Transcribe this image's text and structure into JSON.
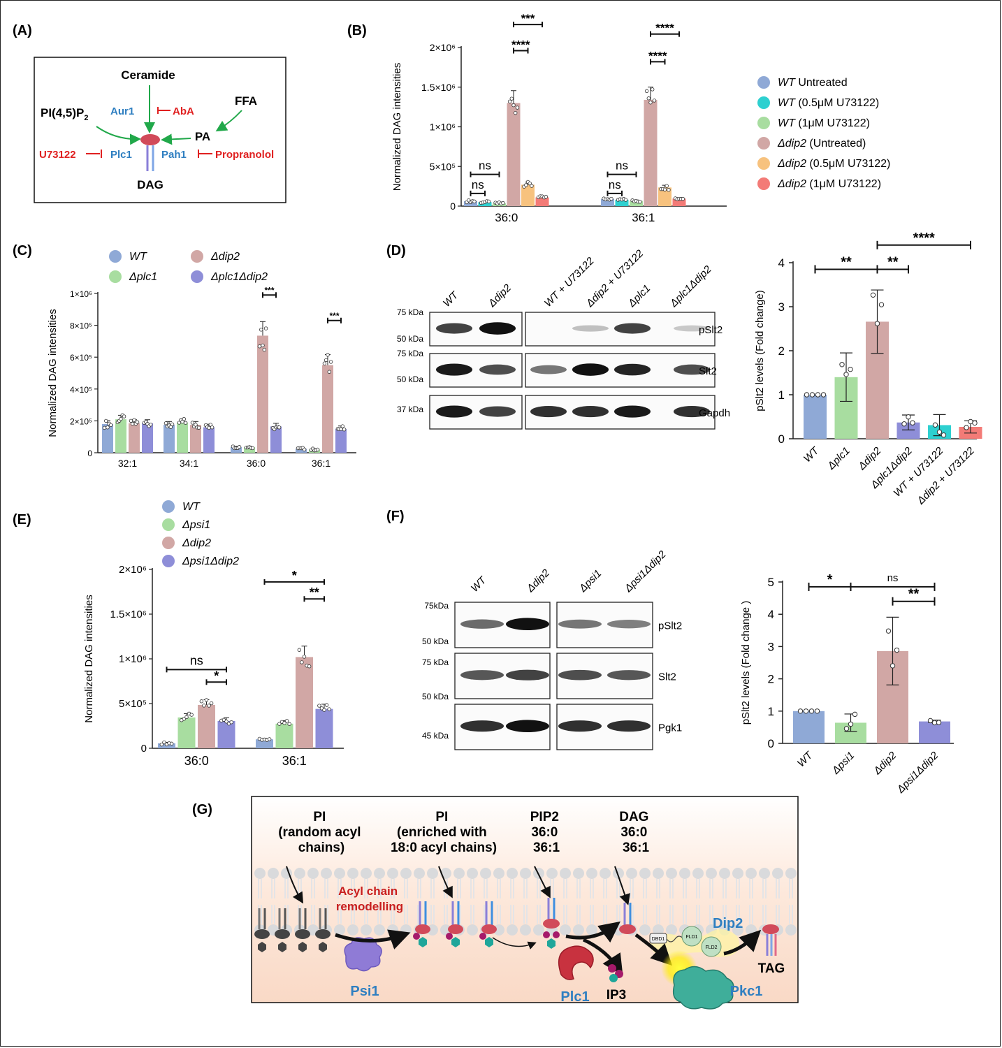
{
  "colors": {
    "wt": "#8fa9d6",
    "blue": "#8fa9d6",
    "cyan": "#2ed0d0",
    "green": "#a8dda0",
    "pink": "#d1a7a5",
    "orange": "#f7c27e",
    "red": "#f37b77",
    "purple": "#8e8ed8",
    "text_blue": "#2f7fc1",
    "text_red": "#e02020",
    "arrow_green": "#21a84a"
  },
  "panels": {
    "A": {
      "label": "(A)",
      "ceramide": "Ceramide",
      "pip2": "PI(4,5)P",
      "pip2_sub": "2",
      "ffa": "FFA",
      "pa": "PA",
      "dag": "DAG",
      "aur1": "Aur1",
      "plc1": "Plc1",
      "pah1": "Pah1",
      "aba": "AbA",
      "u73122": "U73122",
      "propranolol": "Propranolol"
    },
    "B": {
      "label": "(B)"
    },
    "C": {
      "label": "(C)"
    },
    "D": {
      "label": "(D)",
      "blot_lanes": [
        "WT",
        "Δdip2",
        "WT + U73122",
        "Δdip2 + U73122",
        "Δplc1",
        "Δplc1Δdip2"
      ],
      "rows": [
        "pSlt2",
        "Slt2",
        "Gapdh"
      ],
      "markers": [
        "75 kDa",
        "50 kDa",
        "75 kDa",
        "50 kDa",
        "37 kDa"
      ]
    },
    "E": {
      "label": "(E)"
    },
    "F": {
      "label": "(F)",
      "blot_lanes": [
        "WT",
        "Δdip2",
        "Δpsi1",
        "Δpsi1Δdip2"
      ],
      "rows": [
        "pSlt2",
        "Slt2",
        "Pgk1"
      ],
      "markers": [
        "75kDa",
        "50 kDa",
        "75 kDa",
        "50 kDa",
        "45 kDa"
      ]
    },
    "G": {
      "label": "(G)",
      "pi_random": [
        "PI",
        "(random acyl",
        "chains)"
      ],
      "pi_enriched": [
        "PI",
        "(enriched with",
        "18:0 acyl chains)"
      ],
      "pip2": [
        "PIP2",
        "36:0",
        "36:1"
      ],
      "dag": [
        "DAG",
        "36:0",
        "36:1"
      ],
      "remodel": [
        "Acyl chain",
        "remodelling"
      ],
      "psi1": "Psi1",
      "plc1": "Plc1",
      "ip3": "IP3",
      "pkc1": "Pkc1",
      "dip2": "Dip2",
      "tag": "TAG",
      "dbd1": "DBD1",
      "fld1": "FLD1",
      "fld2": "FLD2"
    }
  },
  "chart_data": [
    {
      "id": "B",
      "type": "bar",
      "ylabel": "Normalized DAG intensities",
      "ylim": [
        0,
        2000000
      ],
      "yticks": [
        {
          "v": 0,
          "label": "0"
        },
        {
          "v": 500000,
          "label": "5×10⁵"
        },
        {
          "v": 1000000,
          "label": "1×10⁶"
        },
        {
          "v": 1500000,
          "label": "1.5×10⁶"
        },
        {
          "v": 2000000,
          "label": "2×10⁶"
        }
      ],
      "categories": [
        "36:0",
        "36:1"
      ],
      "series": [
        {
          "name": "WT Untreated",
          "italic": "WT",
          "rest": " Untreated",
          "color": "#8fa9d6",
          "values": [
            62000,
            90000
          ]
        },
        {
          "name": "WT (0.5μM U73122)",
          "italic": "WT",
          "rest": " (0.5μM U73122)",
          "color": "#2ed0d0",
          "values": [
            50000,
            80000
          ]
        },
        {
          "name": "WT (1μM U73122)",
          "italic": "WT",
          "rest": " (1μM U73122)",
          "color": "#a8dda0",
          "values": [
            35000,
            65000
          ]
        },
        {
          "name": "Δdip2 (Untreated)",
          "italic": "Δdip2",
          "rest": " (Untreated)",
          "color": "#d1a7a5",
          "values": [
            1300000,
            1340000
          ]
        },
        {
          "name": "Δdip2 (0.5μM U73122)",
          "italic": "Δdip2",
          "rest": " (0.5μM U73122)",
          "color": "#f7c27e",
          "values": [
            270000,
            235000
          ]
        },
        {
          "name": "Δdip2 (1μM U73122)",
          "italic": "Δdip2",
          "rest": " (1μM U73122)",
          "color": "#f37b77",
          "values": [
            110000,
            95000
          ]
        }
      ],
      "significance": [
        {
          "label": "ns",
          "c": 0,
          "from": 0,
          "to": 1,
          "y": 160000
        },
        {
          "label": "ns",
          "c": 0,
          "from": 0,
          "to": 2,
          "y": 400000
        },
        {
          "label": "****",
          "c": 0,
          "from": 3,
          "to": 4,
          "y": 1960000
        },
        {
          "label": "***",
          "c": 0,
          "from": 3,
          "to": 5,
          "y": 2290000
        },
        {
          "label": "ns",
          "c": 1,
          "from": 0,
          "to": 1,
          "y": 160000
        },
        {
          "label": "ns",
          "c": 1,
          "from": 0,
          "to": 2,
          "y": 400000
        },
        {
          "label": "****",
          "c": 1,
          "from": 3,
          "to": 4,
          "y": 1820000
        },
        {
          "label": "****",
          "c": 1,
          "from": 3,
          "to": 5,
          "y": 2170000
        }
      ]
    },
    {
      "id": "C",
      "type": "bar",
      "ylabel": "Normalized DAG intensities",
      "ylim": [
        0,
        1000000
      ],
      "yticks": [
        {
          "v": 0,
          "label": "0"
        },
        {
          "v": 200000,
          "label": "2×10⁵"
        },
        {
          "v": 400000,
          "label": "4×10⁵"
        },
        {
          "v": 600000,
          "label": "6×10⁵"
        },
        {
          "v": 800000,
          "label": "8×10⁵"
        },
        {
          "v": 1000000,
          "label": "1×10⁶"
        }
      ],
      "categories": [
        "32:1",
        "34:1",
        "36:0",
        "36:1"
      ],
      "series": [
        {
          "name": "WT",
          "color": "#8fa9d6",
          "values": [
            180000,
            175000,
            35000,
            25000
          ]
        },
        {
          "name": "Δplc1",
          "color": "#a8dda0",
          "values": [
            210000,
            190000,
            35000,
            20000
          ]
        },
        {
          "name": "Δdip2",
          "color": "#d1a7a5",
          "values": [
            185000,
            175000,
            735000,
            550000
          ]
        },
        {
          "name": "Δplc1Δdip2",
          "color": "#8e8ed8",
          "values": [
            185000,
            160000,
            165000,
            150000
          ]
        }
      ],
      "significance": [
        {
          "label": "***",
          "c": 2,
          "from": 2,
          "to": 3,
          "y": 990000
        },
        {
          "label": "***",
          "c": 3,
          "from": 2,
          "to": 3,
          "y": 830000
        }
      ]
    },
    {
      "id": "D",
      "type": "bar",
      "ylabel": "pSlt2 levels (Fold change)",
      "ylim": [
        0,
        4
      ],
      "yticks": [
        {
          "v": 0,
          "label": "0"
        },
        {
          "v": 1,
          "label": "1"
        },
        {
          "v": 2,
          "label": "2"
        },
        {
          "v": 3,
          "label": "3"
        },
        {
          "v": 4,
          "label": "4"
        }
      ],
      "categories": [
        "WT",
        "Δplc1",
        "Δdip2",
        "Δplc1Δdip2",
        "WT + U73122",
        "Δdip2 + U73122"
      ],
      "colors": [
        "#8fa9d6",
        "#a8dda0",
        "#d1a7a5",
        "#8e8ed8",
        "#2ed0d0",
        "#f37b77"
      ],
      "values": [
        1.0,
        1.4,
        2.66,
        0.37,
        0.31,
        0.27
      ],
      "errors": [
        0.0,
        0.55,
        0.72,
        0.17,
        0.24,
        0.14
      ],
      "significance": [
        {
          "label": "**",
          "from": 0,
          "to": 2,
          "y": 3.85
        },
        {
          "label": "**",
          "from": 2,
          "to": 3,
          "y": 3.85
        },
        {
          "label": "****",
          "from": 2,
          "to": 5,
          "y": 4.4
        }
      ]
    },
    {
      "id": "E",
      "type": "bar",
      "ylabel": "Normalized DAG intensities",
      "ylim": [
        0,
        2000000
      ],
      "yticks": [
        {
          "v": 0,
          "label": "0"
        },
        {
          "v": 500000,
          "label": "5×10⁵"
        },
        {
          "v": 1000000,
          "label": "1×10⁶"
        },
        {
          "v": 1500000,
          "label": "1.5×10⁶"
        },
        {
          "v": 2000000,
          "label": "2×10⁶"
        }
      ],
      "categories": [
        "36:0",
        "36:1"
      ],
      "series": [
        {
          "name": "WT",
          "color": "#8fa9d6",
          "values": [
            55000,
            100000
          ]
        },
        {
          "name": "Δpsi1",
          "color": "#a8dda0",
          "values": [
            345000,
            275000
          ]
        },
        {
          "name": "Δdip2",
          "color": "#d1a7a5",
          "values": [
            485000,
            1020000
          ]
        },
        {
          "name": "Δpsi1Δdip2",
          "color": "#8e8ed8",
          "values": [
            305000,
            440000
          ]
        }
      ],
      "significance": [
        {
          "label": "*",
          "c": 0,
          "from": 2,
          "to": 3,
          "y": 740000
        },
        {
          "label": "ns",
          "c": 0,
          "from": 0,
          "to": 3,
          "y": 880000
        },
        {
          "label": "**",
          "c": 1,
          "from": 2,
          "to": 3,
          "y": 1670000
        },
        {
          "label": "*",
          "c": 1,
          "from": 0,
          "to": 3,
          "y": 1860000
        }
      ]
    },
    {
      "id": "F",
      "type": "bar",
      "ylabel": "pSlt2 levels (Fold change )",
      "ylim": [
        0,
        5
      ],
      "yticks": [
        {
          "v": 0,
          "label": "0"
        },
        {
          "v": 1,
          "label": "1"
        },
        {
          "v": 2,
          "label": "2"
        },
        {
          "v": 3,
          "label": "3"
        },
        {
          "v": 4,
          "label": "4"
        },
        {
          "v": 5,
          "label": "5"
        }
      ],
      "categories": [
        "WT",
        "Δpsi1",
        "Δdip2",
        "Δpsi1Δdip2"
      ],
      "colors": [
        "#8fa9d6",
        "#a8dda0",
        "#d1a7a5",
        "#8e8ed8"
      ],
      "values": [
        1.0,
        0.64,
        2.86,
        0.68
      ],
      "errors": [
        0.0,
        0.27,
        1.05,
        0.04
      ],
      "significance": [
        {
          "label": "*",
          "from": 0,
          "to": 1,
          "y": 4.85
        },
        {
          "label": "ns",
          "from": 1,
          "to": 3,
          "y": 4.85
        },
        {
          "label": "**",
          "from": 2,
          "to": 3,
          "y": 4.4
        }
      ]
    }
  ]
}
